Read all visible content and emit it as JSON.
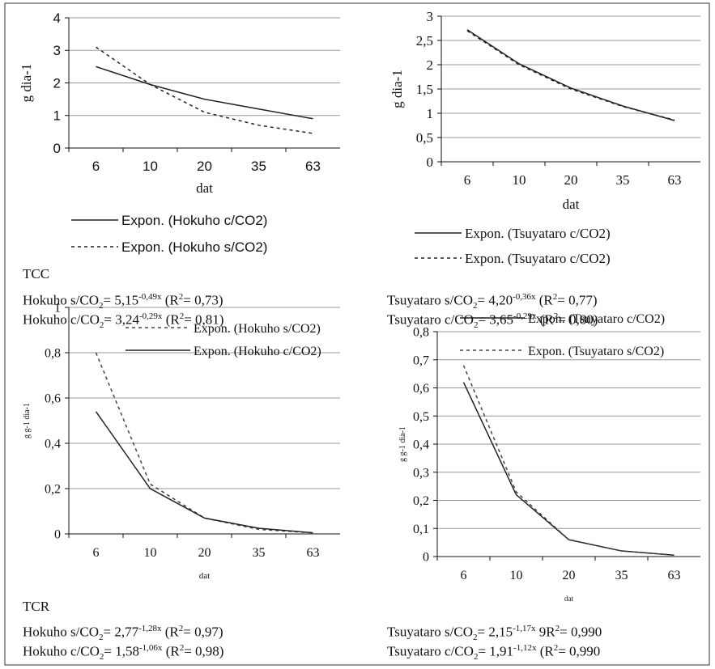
{
  "chart_data": [
    {
      "type": "line",
      "ylabel": "g dia-1",
      "xlabel": "dat",
      "legend": "below",
      "categories": [
        "6",
        "10",
        "20",
        "35",
        "63"
      ],
      "ylim": [
        0,
        4
      ],
      "yticks": [
        0,
        1,
        2,
        3,
        4
      ],
      "grid": true,
      "series": [
        {
          "name": "Expon. (Hokuho c/CO2)",
          "color": "#222222",
          "style": "solid",
          "values": [
            2.5,
            1.95,
            1.5,
            1.2,
            0.9
          ]
        },
        {
          "name": "Expon. (Hokuho s/CO2)",
          "color": "#222222",
          "style": "dashed",
          "values": [
            3.1,
            1.95,
            1.1,
            0.7,
            0.45
          ]
        }
      ]
    },
    {
      "type": "line",
      "ylabel": "g dia-1",
      "xlabel": "dat",
      "legend": "below",
      "categories": [
        "6",
        "10",
        "20",
        "35",
        "63"
      ],
      "ylim": [
        0,
        3
      ],
      "yticks": [
        0,
        {
          "value": 0.5,
          "label": "0,5"
        },
        1,
        {
          "value": 1.5,
          "label": "1,5"
        },
        2,
        {
          "value": 2.5,
          "label": "2,5"
        },
        3
      ],
      "grid": true,
      "series": [
        {
          "name": "Expon. (Tsuyataro c/CO2)",
          "color": "#222222",
          "style": "solid",
          "values": [
            2.72,
            2.02,
            1.52,
            1.15,
            0.85
          ]
        },
        {
          "name": "Expon. (Tsuyataro c/CO2)",
          "color": "#222222",
          "style": "dashed",
          "values": [
            2.7,
            2.0,
            1.5,
            1.14,
            0.86
          ]
        }
      ]
    },
    {
      "type": "line",
      "ylabel": "g g-1 dia-1",
      "xlabel": "dat",
      "legend": "upper right",
      "categories": [
        "6",
        "10",
        "20",
        "35",
        "63"
      ],
      "ylim": [
        0,
        1
      ],
      "yticks": [
        0,
        {
          "value": 0.2,
          "label": "0,2"
        },
        {
          "value": 0.4,
          "label": "0,4"
        },
        {
          "value": 0.6,
          "label": "0,6"
        },
        {
          "value": 0.8,
          "label": "0,8"
        },
        1
      ],
      "grid": true,
      "series": [
        {
          "name": "Expon. (Hokuho s/CO2)",
          "color": "#444444",
          "style": "dashed",
          "values": [
            0.8,
            0.22,
            0.07,
            0.02,
            0.005
          ]
        },
        {
          "name": "Expon. (Hokuho c/CO2)",
          "color": "#222222",
          "style": "solid",
          "values": [
            0.54,
            0.2,
            0.07,
            0.025,
            0.005
          ]
        }
      ]
    },
    {
      "type": "line",
      "ylabel": "g g-1 dia-1",
      "xlabel": "dat",
      "legend": "upper right",
      "categories": [
        "6",
        "10",
        "20",
        "35",
        "63"
      ],
      "ylim": [
        0,
        0.8
      ],
      "yticks": [
        0,
        {
          "value": 0.1,
          "label": "0,1"
        },
        {
          "value": 0.2,
          "label": "0,2"
        },
        {
          "value": 0.3,
          "label": "0,3"
        },
        {
          "value": 0.4,
          "label": "0,4"
        },
        {
          "value": 0.5,
          "label": "0,5"
        },
        {
          "value": 0.6,
          "label": "0,6"
        },
        {
          "value": 0.7,
          "label": "0,7"
        },
        {
          "value": 0.8,
          "label": "0,8"
        }
      ],
      "grid": true,
      "series": [
        {
          "name": "Expon. (Tsuyataro c/CO2)",
          "color": "#222222",
          "style": "solid",
          "values": [
            0.62,
            0.22,
            0.06,
            0.02,
            0.005
          ]
        },
        {
          "name": "Expon. (Tsuyataro s/CO2)",
          "color": "#444444",
          "style": "dashed",
          "values": [
            0.68,
            0.23,
            0.06,
            0.02,
            0.005
          ]
        }
      ]
    }
  ],
  "captions": [
    {
      "title": "TCC",
      "left": [
        [
          "Hokuho s/CO",
          "2",
          "= 5,15",
          "-0,49x",
          " (R",
          "2",
          "= 0,73)"
        ],
        [
          "Hokuho c/CO",
          "2",
          "= 3,24",
          "-0,29x",
          " (R",
          "2",
          "= 0,81)"
        ]
      ],
      "right": [
        [
          "Tsuyataro s/CO",
          "2",
          "= 4,20",
          "-0,36x",
          " (R",
          "2",
          "= 0,77)"
        ],
        [
          "Tsuyataro c/CO",
          "2",
          "= 3,65",
          "-0,29x",
          " (R",
          "2",
          "= 0,80)"
        ]
      ]
    },
    {
      "title": "TCR",
      "left": [
        [
          "Hokuho s/CO",
          "2",
          "= 2,77",
          "-1,28x",
          " (R",
          "2",
          "= 0,97)"
        ],
        [
          "Hokuho c/CO",
          "2",
          "= 1,58",
          "-1,06x",
          " (R",
          "2",
          "= 0,98)"
        ]
      ],
      "right": [
        [
          "Tsuyataro s/CO",
          "2",
          "= 2,15",
          "-1,17x",
          " 9R",
          "2",
          "= 0,990"
        ],
        [
          "Tsuyataro c/CO",
          "2",
          "= 1,91",
          "-1,12x",
          " (R",
          "2",
          "= 0,990"
        ]
      ]
    }
  ]
}
